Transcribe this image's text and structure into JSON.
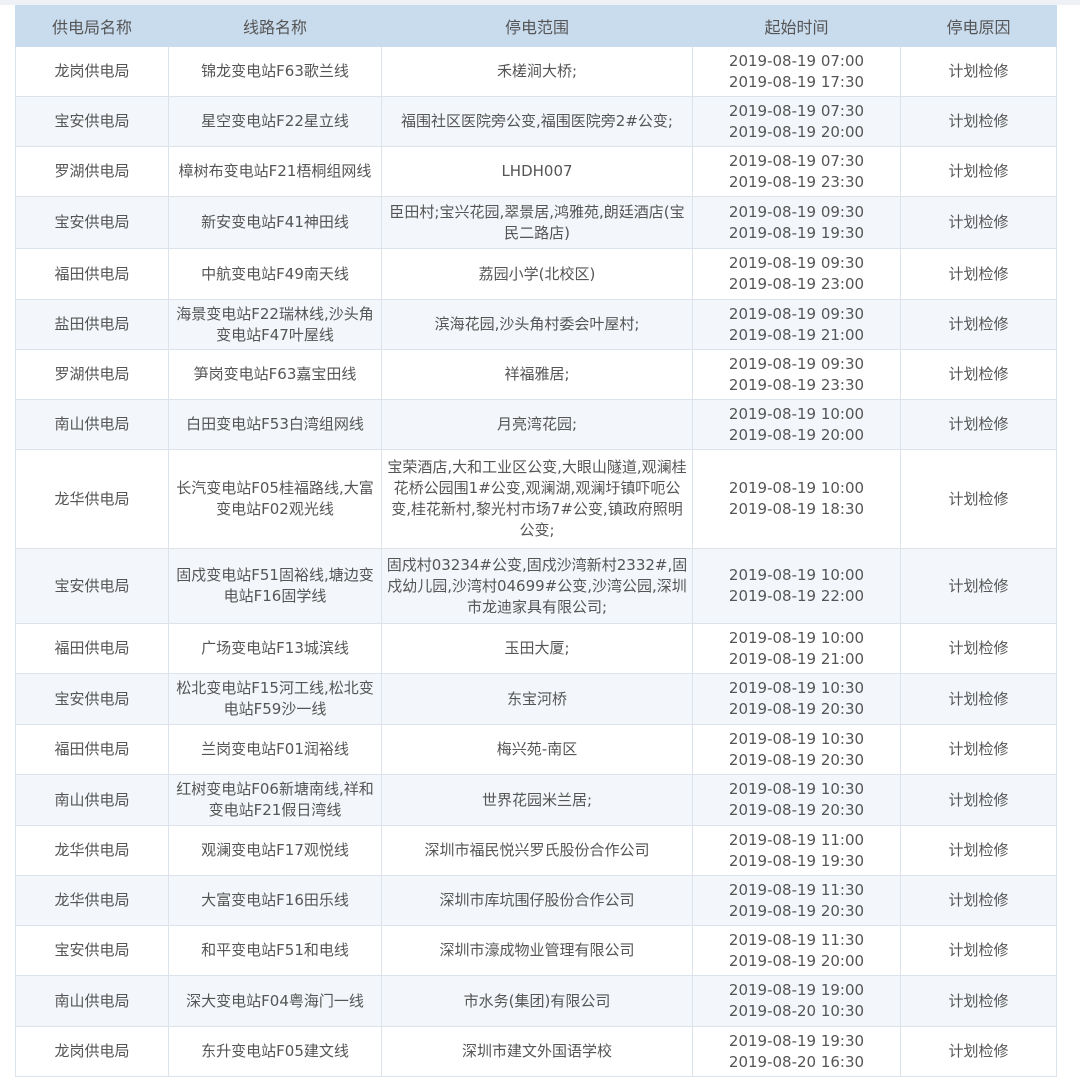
{
  "headers": [
    "供电局名称",
    "线路名称",
    "停电范围",
    "起始时间",
    "停电原因"
  ],
  "rows": [
    {
      "bureau": "龙岗供电局",
      "line": "锦龙变电站F63歌兰线",
      "scope": "禾槎涧大桥;",
      "start": "2019-08-19 07:00",
      "end": "2019-08-19 17:30",
      "reason": "计划检修"
    },
    {
      "bureau": "宝安供电局",
      "line": "星空变电站F22星立线",
      "scope": "福围社区医院旁公变,福围医院旁2#公变;",
      "start": "2019-08-19 07:30",
      "end": "2019-08-19 20:00",
      "reason": "计划检修"
    },
    {
      "bureau": "罗湖供电局",
      "line": "樟树布变电站F21梧桐组网线",
      "scope": "LHDH007",
      "start": "2019-08-19 07:30",
      "end": "2019-08-19 23:30",
      "reason": "计划检修"
    },
    {
      "bureau": "宝安供电局",
      "line": "新安变电站F41神田线",
      "scope": "臣田村;宝兴花园,翠景居,鸿雅苑,朗廷酒店(宝民二路店)",
      "start": "2019-08-19 09:30",
      "end": "2019-08-19 19:30",
      "reason": "计划检修"
    },
    {
      "bureau": "福田供电局",
      "line": "中航变电站F49南天线",
      "scope": "荔园小学(北校区)",
      "start": "2019-08-19 09:30",
      "end": "2019-08-19 23:00",
      "reason": "计划检修"
    },
    {
      "bureau": "盐田供电局",
      "line": "海景变电站F22瑞林线,沙头角变电站F47叶屋线",
      "scope": "滨海花园,沙头角村委会叶屋村;",
      "start": "2019-08-19 09:30",
      "end": "2019-08-19 21:00",
      "reason": "计划检修"
    },
    {
      "bureau": "罗湖供电局",
      "line": "笋岗变电站F63嘉宝田线",
      "scope": "祥福雅居;",
      "start": "2019-08-19 09:30",
      "end": "2019-08-19 23:30",
      "reason": "计划检修"
    },
    {
      "bureau": "南山供电局",
      "line": "白田变电站F53白湾组网线",
      "scope": "月亮湾花园;",
      "start": "2019-08-19 10:00",
      "end": "2019-08-19 20:00",
      "reason": "计划检修"
    },
    {
      "bureau": "龙华供电局",
      "line": "长汽变电站F05桂福路线,大富变电站F02观光线",
      "scope": "宝荣酒店,大和工业区公变,大眼山隧道,观澜桂花桥公园围1#公变,观澜湖,观澜圩镇吓呃公变,桂花新村,黎光村市场7#公变,镇政府照明公变;",
      "start": "2019-08-19 10:00",
      "end": "2019-08-19 18:30",
      "reason": "计划检修"
    },
    {
      "bureau": "宝安供电局",
      "line": "固戍变电站F51固裕线,塘边变电站F16固学线",
      "scope": "固戍村03234#公变,固戍沙湾新村2332#,固戍幼儿园,沙湾村04699#公变,沙湾公园,深圳市龙迪家具有限公司;",
      "start": "2019-08-19 10:00",
      "end": "2019-08-19 22:00",
      "reason": "计划检修"
    },
    {
      "bureau": "福田供电局",
      "line": "广场变电站F13城滨线",
      "scope": "玉田大厦;",
      "start": "2019-08-19 10:00",
      "end": "2019-08-19 21:00",
      "reason": "计划检修"
    },
    {
      "bureau": "宝安供电局",
      "line": "松北变电站F15河工线,松北变电站F59沙一线",
      "scope": "东宝河桥",
      "start": "2019-08-19 10:30",
      "end": "2019-08-19 20:30",
      "reason": "计划检修"
    },
    {
      "bureau": "福田供电局",
      "line": "兰岗变电站F01润裕线",
      "scope": "梅兴苑-南区",
      "start": "2019-08-19 10:30",
      "end": "2019-08-19 20:30",
      "reason": "计划检修"
    },
    {
      "bureau": "南山供电局",
      "line": "红树变电站F06新塘南线,祥和变电站F21假日湾线",
      "scope": "世界花园米兰居;",
      "start": "2019-08-19 10:30",
      "end": "2019-08-19 20:30",
      "reason": "计划检修"
    },
    {
      "bureau": "龙华供电局",
      "line": "观澜变电站F17观悦线",
      "scope": "深圳市福民悦兴罗氏股份合作公司",
      "start": "2019-08-19 11:00",
      "end": "2019-08-19 19:30",
      "reason": "计划检修"
    },
    {
      "bureau": "龙华供电局",
      "line": "大富变电站F16田乐线",
      "scope": "深圳市库坑围仔股份合作公司",
      "start": "2019-08-19 11:30",
      "end": "2019-08-19 20:30",
      "reason": "计划检修"
    },
    {
      "bureau": "宝安供电局",
      "line": "和平变电站F51和电线",
      "scope": "深圳市濠成物业管理有限公司",
      "start": "2019-08-19 11:30",
      "end": "2019-08-19 20:00",
      "reason": "计划检修"
    },
    {
      "bureau": "南山供电局",
      "line": "深大变电站F04粤海门一线",
      "scope": "市水务(集团)有限公司",
      "start": "2019-08-19 19:00",
      "end": "2019-08-20 10:30",
      "reason": "计划检修"
    },
    {
      "bureau": "龙岗供电局",
      "line": "东升变电站F05建文线",
      "scope": "深圳市建文外国语学校",
      "start": "2019-08-19 19:30",
      "end": "2019-08-20 16:30",
      "reason": "计划检修"
    }
  ]
}
